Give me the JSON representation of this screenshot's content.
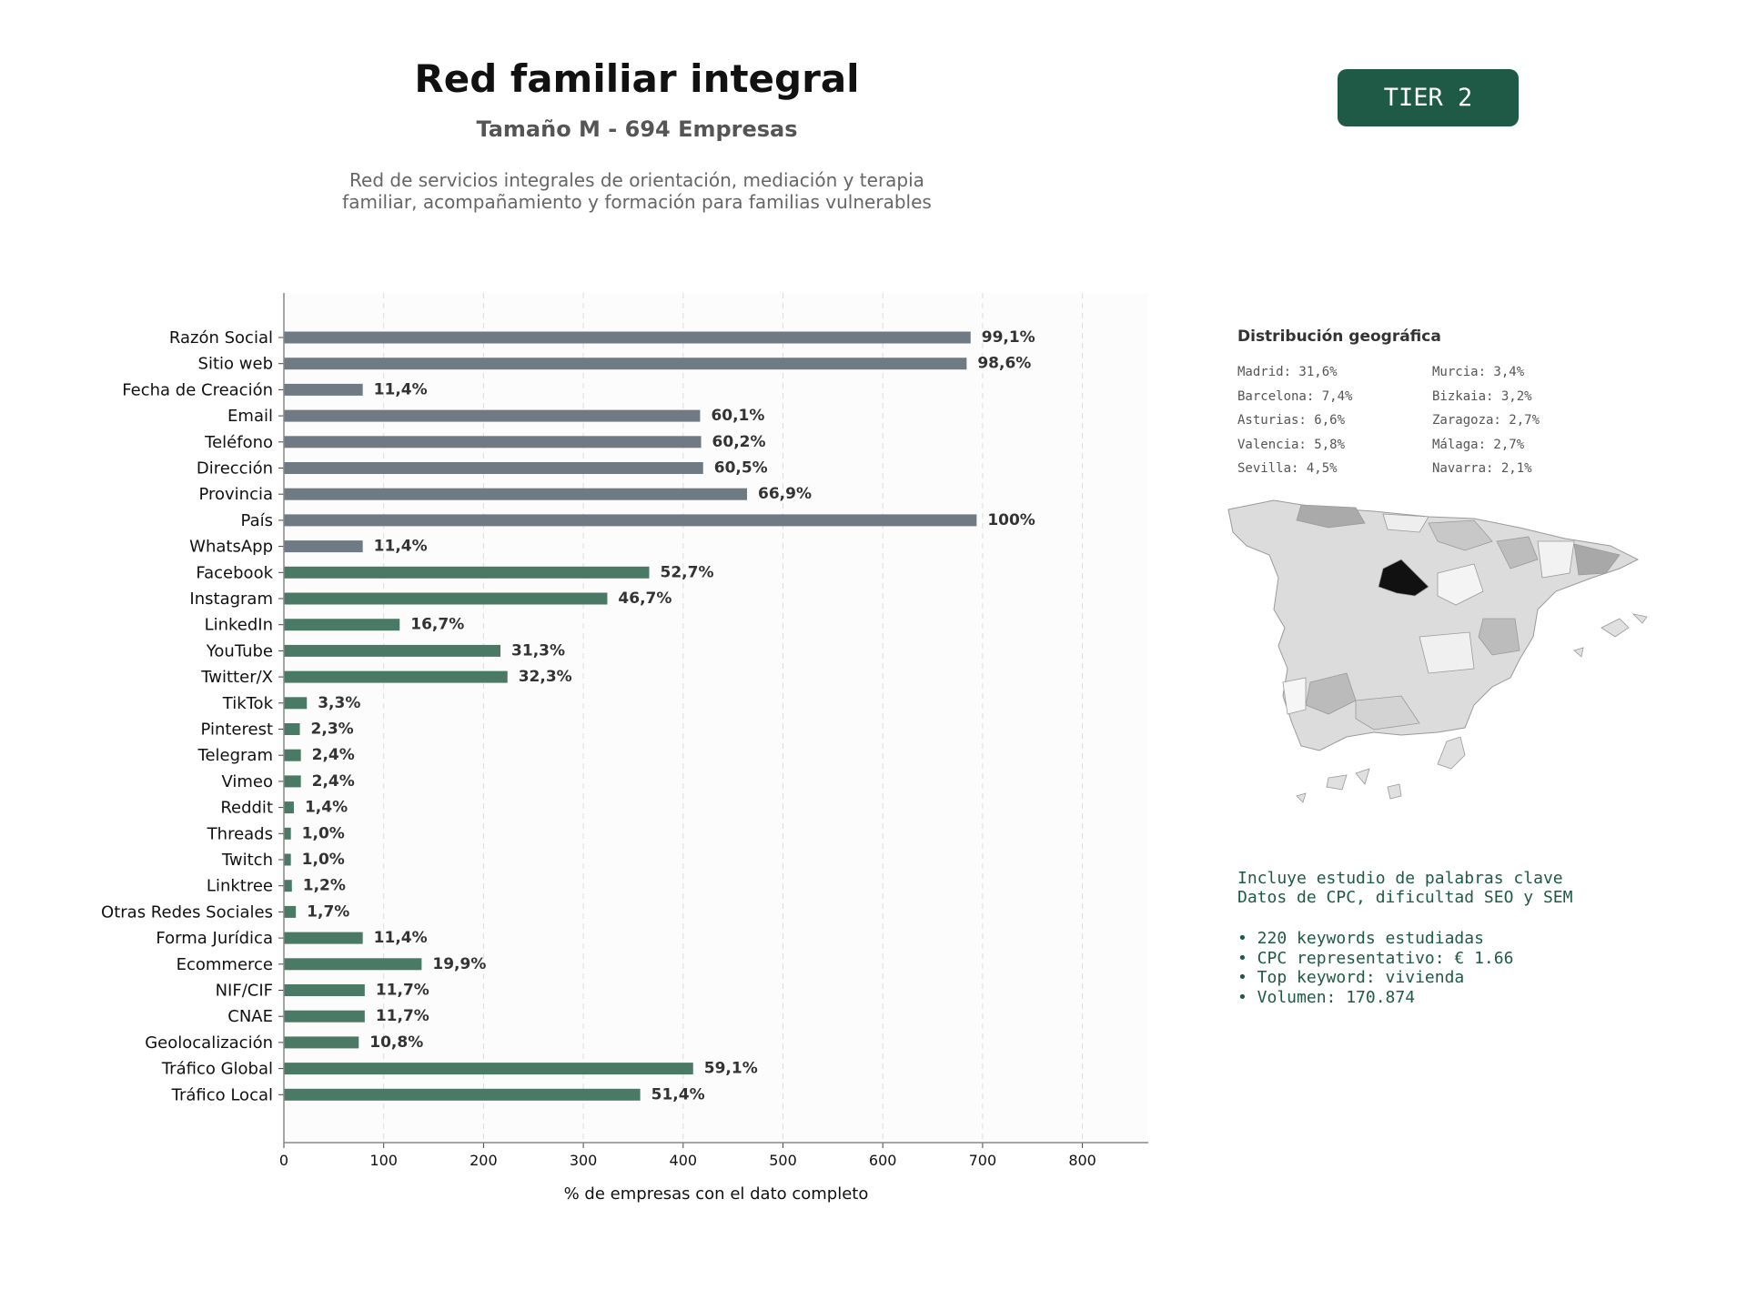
{
  "header": {
    "title": "Red familiar integral",
    "subtitle": "Tamaño M - 694 Empresas",
    "description_line1": "Red de servicios integrales de orientación, mediación y terapia",
    "description_line2": "familiar, acompañamiento y formación para familias vulnerables",
    "tier": "TIER 2"
  },
  "colors": {
    "contact_bar": "#707a84",
    "digital_bar": "#4a7a66",
    "badge": "#1e5a46",
    "plot_bg": "#fcfcfc"
  },
  "chart_data": {
    "type": "bar",
    "orientation": "horizontal",
    "xlabel": "% de empresas con el dato completo",
    "ylabel": "",
    "xlim": [
      0,
      866
    ],
    "xticks": [
      0,
      100,
      200,
      300,
      400,
      500,
      600,
      700,
      800
    ],
    "grid": "vertical dashed",
    "categories": [
      "Razón Social",
      "Sitio web",
      "Fecha de Creación",
      "Email",
      "Teléfono",
      "Dirección",
      "Provincia",
      "País",
      "WhatsApp",
      "Facebook",
      "Instagram",
      "LinkedIn",
      "YouTube",
      "Twitter/X",
      "TikTok",
      "Pinterest",
      "Telegram",
      "Vimeo",
      "Reddit",
      "Threads",
      "Twitch",
      "Linktree",
      "Otras Redes Sociales",
      "Forma Jurídica",
      "Ecommerce",
      "NIF/CIF",
      "CNAE",
      "Geolocalización",
      "Tráfico Global",
      "Tráfico Local"
    ],
    "values": [
      688,
      684,
      79,
      417,
      418,
      420,
      464,
      694,
      79,
      366,
      324,
      116,
      217,
      224,
      23,
      16,
      17,
      17,
      10,
      7,
      7,
      8,
      12,
      79,
      138,
      81,
      81,
      75,
      410,
      357
    ],
    "labels": [
      "99,1%",
      "98,6%",
      "11,4%",
      "60,1%",
      "60,2%",
      "60,5%",
      "66,9%",
      "100%",
      "11,4%",
      "52,7%",
      "46,7%",
      "16,7%",
      "31,3%",
      "32,3%",
      "3,3%",
      "2,3%",
      "2,4%",
      "2,4%",
      "1,4%",
      "1,0%",
      "1,0%",
      "1,2%",
      "1,7%",
      "11,4%",
      "19,9%",
      "11,7%",
      "11,7%",
      "10,8%",
      "59,1%",
      "51,4%"
    ],
    "group": [
      "contact",
      "contact",
      "contact",
      "contact",
      "contact",
      "contact",
      "contact",
      "contact",
      "contact",
      "digital",
      "digital",
      "digital",
      "digital",
      "digital",
      "digital",
      "digital",
      "digital",
      "digital",
      "digital",
      "digital",
      "digital",
      "digital",
      "digital",
      "digital",
      "digital",
      "digital",
      "digital",
      "digital",
      "digital",
      "digital"
    ]
  },
  "geo": {
    "title": "Distribución geográfica",
    "col1": [
      "Madrid: 31,6%",
      "Barcelona: 7,4%",
      "Asturias: 6,6%",
      "Valencia: 5,8%",
      "Sevilla: 4,5%"
    ],
    "col2": [
      "Murcia: 3,4%",
      "Bizkaia: 3,2%",
      "Zaragoza: 2,7%",
      "Málaga: 2,7%",
      "Navarra: 2,1%"
    ]
  },
  "keywords": {
    "line1": "Incluye estudio de palabras clave",
    "line2": "Datos de CPC, dificultad SEO y SEM",
    "bullets": [
      "• 220 keywords estudiadas",
      "• CPC representativo: € 1.66",
      "• Top keyword: vivienda",
      "• Volumen: 170.874"
    ]
  }
}
